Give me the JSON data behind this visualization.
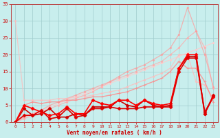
{
  "title": "",
  "xlabel": "Vent moyen/en rafales ( km/h )",
  "ylabel": "",
  "xlim": [
    -0.5,
    23.5
  ],
  "ylim": [
    0,
    35
  ],
  "yticks": [
    0,
    5,
    10,
    15,
    20,
    25,
    30,
    35
  ],
  "xticks": [
    0,
    1,
    2,
    3,
    4,
    5,
    6,
    7,
    8,
    9,
    10,
    11,
    12,
    13,
    14,
    15,
    16,
    17,
    18,
    19,
    20,
    21,
    22,
    23
  ],
  "background_color": "#c8eeed",
  "grid_color": "#a0cccc",
  "series": [
    {
      "x": [
        0,
        1,
        2,
        3,
        4,
        5,
        6,
        7,
        8,
        9,
        10,
        11,
        12,
        13,
        14,
        15,
        16,
        17,
        18,
        19,
        20,
        21,
        22,
        23
      ],
      "y": [
        0.5,
        1.5,
        2.5,
        3.5,
        4.5,
        5.5,
        6.5,
        7.5,
        8.5,
        9.5,
        10.5,
        11.5,
        12.5,
        13.5,
        14.5,
        15.5,
        16.5,
        17.5,
        18.5,
        19.5,
        20.5,
        21.5,
        22.5,
        23.5
      ],
      "color": "#ffcccc",
      "alpha": 0.9,
      "lw": 0.8,
      "marker": "D",
      "ms": 1.5
    },
    {
      "x": [
        0,
        1,
        2,
        3,
        4,
        5,
        6,
        7,
        8,
        9,
        10,
        11,
        12,
        13,
        14,
        15,
        16,
        17,
        18,
        19,
        20,
        21,
        22,
        23
      ],
      "y": [
        0,
        1,
        2,
        3,
        4,
        5,
        6,
        7,
        8,
        9,
        10.5,
        12,
        13,
        14,
        15,
        16,
        17,
        18,
        20,
        22,
        25,
        27,
        22,
        10
      ],
      "color": "#ffaaaa",
      "alpha": 0.8,
      "lw": 0.8,
      "marker": "D",
      "ms": 1.5
    },
    {
      "x": [
        0,
        1,
        2,
        3,
        4,
        5,
        6,
        7,
        8,
        9,
        10,
        11,
        12,
        13,
        14,
        15,
        16,
        17,
        18,
        19,
        20,
        21,
        22,
        23
      ],
      "y": [
        0,
        1.5,
        2.5,
        3.5,
        5,
        6,
        7,
        8,
        9,
        10,
        11,
        12,
        13.5,
        15,
        16,
        17,
        18.5,
        20,
        22,
        26,
        34,
        27,
        20,
        10.5
      ],
      "color": "#ff9999",
      "alpha": 0.7,
      "lw": 0.9,
      "marker": "D",
      "ms": 1.5
    },
    {
      "x": [
        0,
        1,
        2,
        3,
        4,
        5,
        6,
        7,
        8,
        9,
        10,
        11,
        12,
        13,
        14,
        15,
        16,
        17,
        18,
        19,
        20,
        21,
        22,
        23
      ],
      "y": [
        30,
        6.5,
        6.5,
        6.5,
        6.5,
        7,
        7,
        7.5,
        7.5,
        8,
        8.5,
        9,
        9.5,
        10.5,
        11.5,
        12.5,
        13.5,
        14.5,
        16,
        20,
        20,
        12,
        11,
        7
      ],
      "color": "#ffbbbb",
      "alpha": 0.75,
      "lw": 0.9,
      "marker": "D",
      "ms": 1.5
    },
    {
      "x": [
        0,
        1,
        2,
        3,
        4,
        5,
        6,
        7,
        8,
        9,
        10,
        11,
        12,
        13,
        14,
        15,
        16,
        17,
        18,
        19,
        20,
        21,
        22,
        23
      ],
      "y": [
        0,
        5,
        6,
        5.5,
        6,
        6,
        6.5,
        6.5,
        7,
        7.5,
        7.5,
        8,
        8.5,
        9,
        10,
        11,
        12,
        13,
        15,
        18,
        16,
        16,
        12,
        6
      ],
      "color": "#ff8888",
      "alpha": 0.8,
      "lw": 1.0,
      "marker": "+",
      "ms": 3.5
    },
    {
      "x": [
        0,
        1,
        2,
        3,
        4,
        5,
        6,
        7,
        8,
        9,
        10,
        11,
        12,
        13,
        14,
        15,
        16,
        17,
        18,
        19,
        20,
        21,
        22,
        23
      ],
      "y": [
        0,
        4,
        2,
        2.5,
        4,
        1.5,
        1.5,
        2.5,
        2,
        4.5,
        4.5,
        4.5,
        6.5,
        5,
        4.5,
        6.5,
        5,
        4.5,
        5,
        16,
        19.5,
        19.5,
        3,
        7.5
      ],
      "color": "#cc0000",
      "alpha": 1.0,
      "lw": 1.2,
      "marker": "D",
      "ms": 2.5
    },
    {
      "x": [
        0,
        1,
        2,
        3,
        4,
        5,
        6,
        7,
        8,
        9,
        10,
        11,
        12,
        13,
        14,
        15,
        16,
        17,
        18,
        19,
        20,
        21,
        22,
        23
      ],
      "y": [
        0,
        5,
        4,
        3,
        2,
        2.5,
        4.5,
        2.5,
        2.5,
        6.5,
        5.5,
        5,
        6.5,
        6.5,
        5,
        6.5,
        5.5,
        5,
        5.5,
        16,
        20,
        20,
        2.5,
        7.5
      ],
      "color": "#ff0000",
      "alpha": 1.0,
      "lw": 1.2,
      "marker": "D",
      "ms": 2.5
    },
    {
      "x": [
        0,
        1,
        2,
        3,
        4,
        5,
        6,
        7,
        8,
        9,
        10,
        11,
        12,
        13,
        14,
        15,
        16,
        17,
        18,
        19,
        20,
        21,
        22,
        23
      ],
      "y": [
        0,
        2,
        2,
        3.5,
        1,
        1.5,
        4,
        1.5,
        2,
        4,
        4,
        4.5,
        4,
        4,
        4,
        4.5,
        4.5,
        4.5,
        4.5,
        15,
        19,
        19,
        2.5,
        8
      ],
      "color": "#dd0000",
      "alpha": 1.0,
      "lw": 1.2,
      "marker": "D",
      "ms": 2.5
    }
  ]
}
